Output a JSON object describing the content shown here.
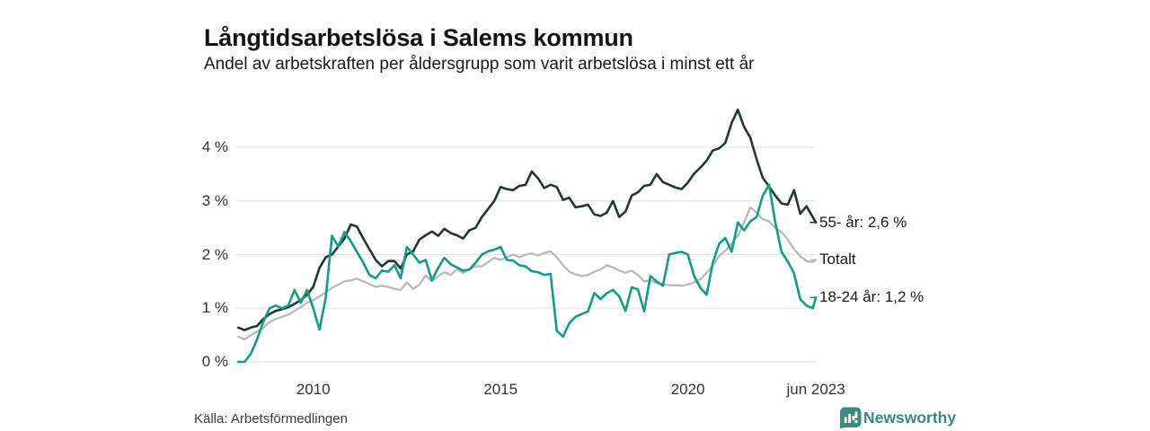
{
  "header": {
    "title": "Långtidsarbetslösa i Salems kommun",
    "subtitle": "Andel av arbetskraften per åldersgrupp som varit arbetslösa i minst ett år"
  },
  "footer": {
    "source": "Källa: Arbetsförmedlingen",
    "brand_name": "Newsworthy",
    "brand_color": "#37897e",
    "brand_icon": "bar-chart-speech-bubble-icon"
  },
  "colors": {
    "grid": "#e4e4e4",
    "tick_text": "#333333",
    "series_55": "#1d3a30",
    "series_total": "#b9b9bc",
    "series_18_24": "#139b8b"
  },
  "chart_data": {
    "type": "line",
    "title": "Långtidsarbetslösa i Salems kommun",
    "subtitle": "Andel av arbetskraften per åldersgrupp som varit arbetslösa i minst ett år",
    "x_start": "2008-01",
    "x_end": "2023-06",
    "sample_interval_months": 2,
    "total_months": 186,
    "x_ticks": [
      "2010",
      "2015",
      "2020",
      "jun 2023"
    ],
    "x_tick_month_index": [
      24,
      84,
      144,
      185
    ],
    "y_ticks": [
      "0 %",
      "1 %",
      "2 %",
      "3 %",
      "4 %"
    ],
    "y_tick_values": [
      0,
      1,
      2,
      3,
      4
    ],
    "ylim": [
      0,
      4.9
    ],
    "grid": "horizontal",
    "legend_position": "right-end-labels",
    "series": [
      {
        "name": "55- år",
        "label": "55- år: 2,6 %",
        "end_value": 2.6,
        "color": "#1d3a30",
        "values": [
          0.64,
          0.59,
          0.64,
          0.67,
          0.8,
          0.89,
          0.95,
          0.98,
          1.02,
          1.08,
          1.15,
          1.25,
          1.4,
          1.75,
          1.95,
          2.0,
          2.15,
          2.3,
          2.56,
          2.52,
          2.3,
          2.1,
          1.9,
          1.78,
          1.88,
          1.88,
          1.74,
          2.0,
          2.06,
          2.28,
          2.36,
          2.43,
          2.35,
          2.48,
          2.4,
          2.36,
          2.3,
          2.45,
          2.5,
          2.7,
          2.85,
          3.0,
          3.26,
          3.22,
          3.2,
          3.28,
          3.3,
          3.55,
          3.42,
          3.24,
          3.3,
          3.26,
          3.02,
          3.06,
          2.88,
          2.9,
          2.93,
          2.75,
          2.72,
          2.78,
          3.0,
          2.7,
          2.8,
          3.1,
          3.16,
          3.28,
          3.3,
          3.5,
          3.35,
          3.3,
          3.25,
          3.22,
          3.34,
          3.51,
          3.62,
          3.75,
          3.94,
          3.98,
          4.08,
          4.45,
          4.7,
          4.38,
          4.18,
          3.78,
          3.43,
          3.27,
          3.1,
          2.95,
          2.93,
          3.2,
          2.76,
          2.9,
          2.7,
          2.6
        ]
      },
      {
        "name": "Totalt",
        "label": "Totalt",
        "end_value": 1.9,
        "color": "#b9b9bc",
        "values": [
          0.47,
          0.42,
          0.5,
          0.56,
          0.64,
          0.74,
          0.8,
          0.84,
          0.88,
          0.95,
          1.02,
          1.1,
          1.15,
          1.22,
          1.3,
          1.38,
          1.44,
          1.5,
          1.52,
          1.55,
          1.5,
          1.45,
          1.4,
          1.42,
          1.4,
          1.36,
          1.34,
          1.48,
          1.36,
          1.44,
          1.61,
          1.5,
          1.6,
          1.67,
          1.62,
          1.72,
          1.66,
          1.72,
          1.78,
          1.78,
          1.86,
          1.94,
          1.9,
          1.95,
          2.0,
          1.95,
          2.0,
          2.02,
          1.98,
          2.03,
          2.06,
          1.95,
          1.8,
          1.68,
          1.63,
          1.6,
          1.62,
          1.68,
          1.72,
          1.8,
          1.76,
          1.7,
          1.66,
          1.7,
          1.62,
          1.5,
          1.52,
          1.47,
          1.45,
          1.43,
          1.43,
          1.42,
          1.44,
          1.48,
          1.54,
          1.66,
          1.8,
          1.97,
          2.07,
          2.2,
          2.35,
          2.6,
          2.88,
          2.78,
          2.66,
          2.62,
          2.5,
          2.42,
          2.28,
          2.1,
          1.97,
          1.88,
          1.86,
          1.9
        ]
      },
      {
        "name": "18-24 år",
        "label": "18-24 år: 1,2 %",
        "end_value": 1.2,
        "color": "#139b8b",
        "values": [
          0.0,
          0.0,
          0.15,
          0.42,
          0.75,
          1.0,
          1.05,
          1.0,
          1.05,
          1.34,
          1.1,
          1.34,
          1.0,
          0.6,
          1.2,
          2.35,
          2.15,
          2.42,
          2.25,
          2.05,
          1.85,
          1.62,
          1.56,
          1.7,
          1.68,
          1.8,
          1.56,
          2.14,
          2.0,
          1.85,
          1.9,
          1.52,
          1.75,
          1.94,
          1.82,
          1.76,
          1.7,
          1.72,
          1.85,
          2.0,
          2.06,
          2.09,
          2.14,
          1.9,
          1.89,
          1.8,
          1.78,
          1.69,
          1.67,
          1.62,
          1.64,
          0.58,
          0.47,
          0.72,
          0.84,
          0.89,
          0.94,
          1.28,
          1.17,
          1.28,
          1.34,
          1.22,
          0.95,
          1.39,
          1.35,
          0.94,
          1.6,
          1.5,
          1.42,
          2.0,
          2.03,
          2.05,
          2.0,
          1.6,
          1.38,
          1.25,
          1.85,
          2.2,
          2.31,
          2.05,
          2.6,
          2.45,
          2.62,
          2.7,
          3.1,
          3.3,
          2.6,
          2.05,
          1.87,
          1.65,
          1.17,
          1.05,
          1.0,
          1.2
        ]
      }
    ]
  }
}
